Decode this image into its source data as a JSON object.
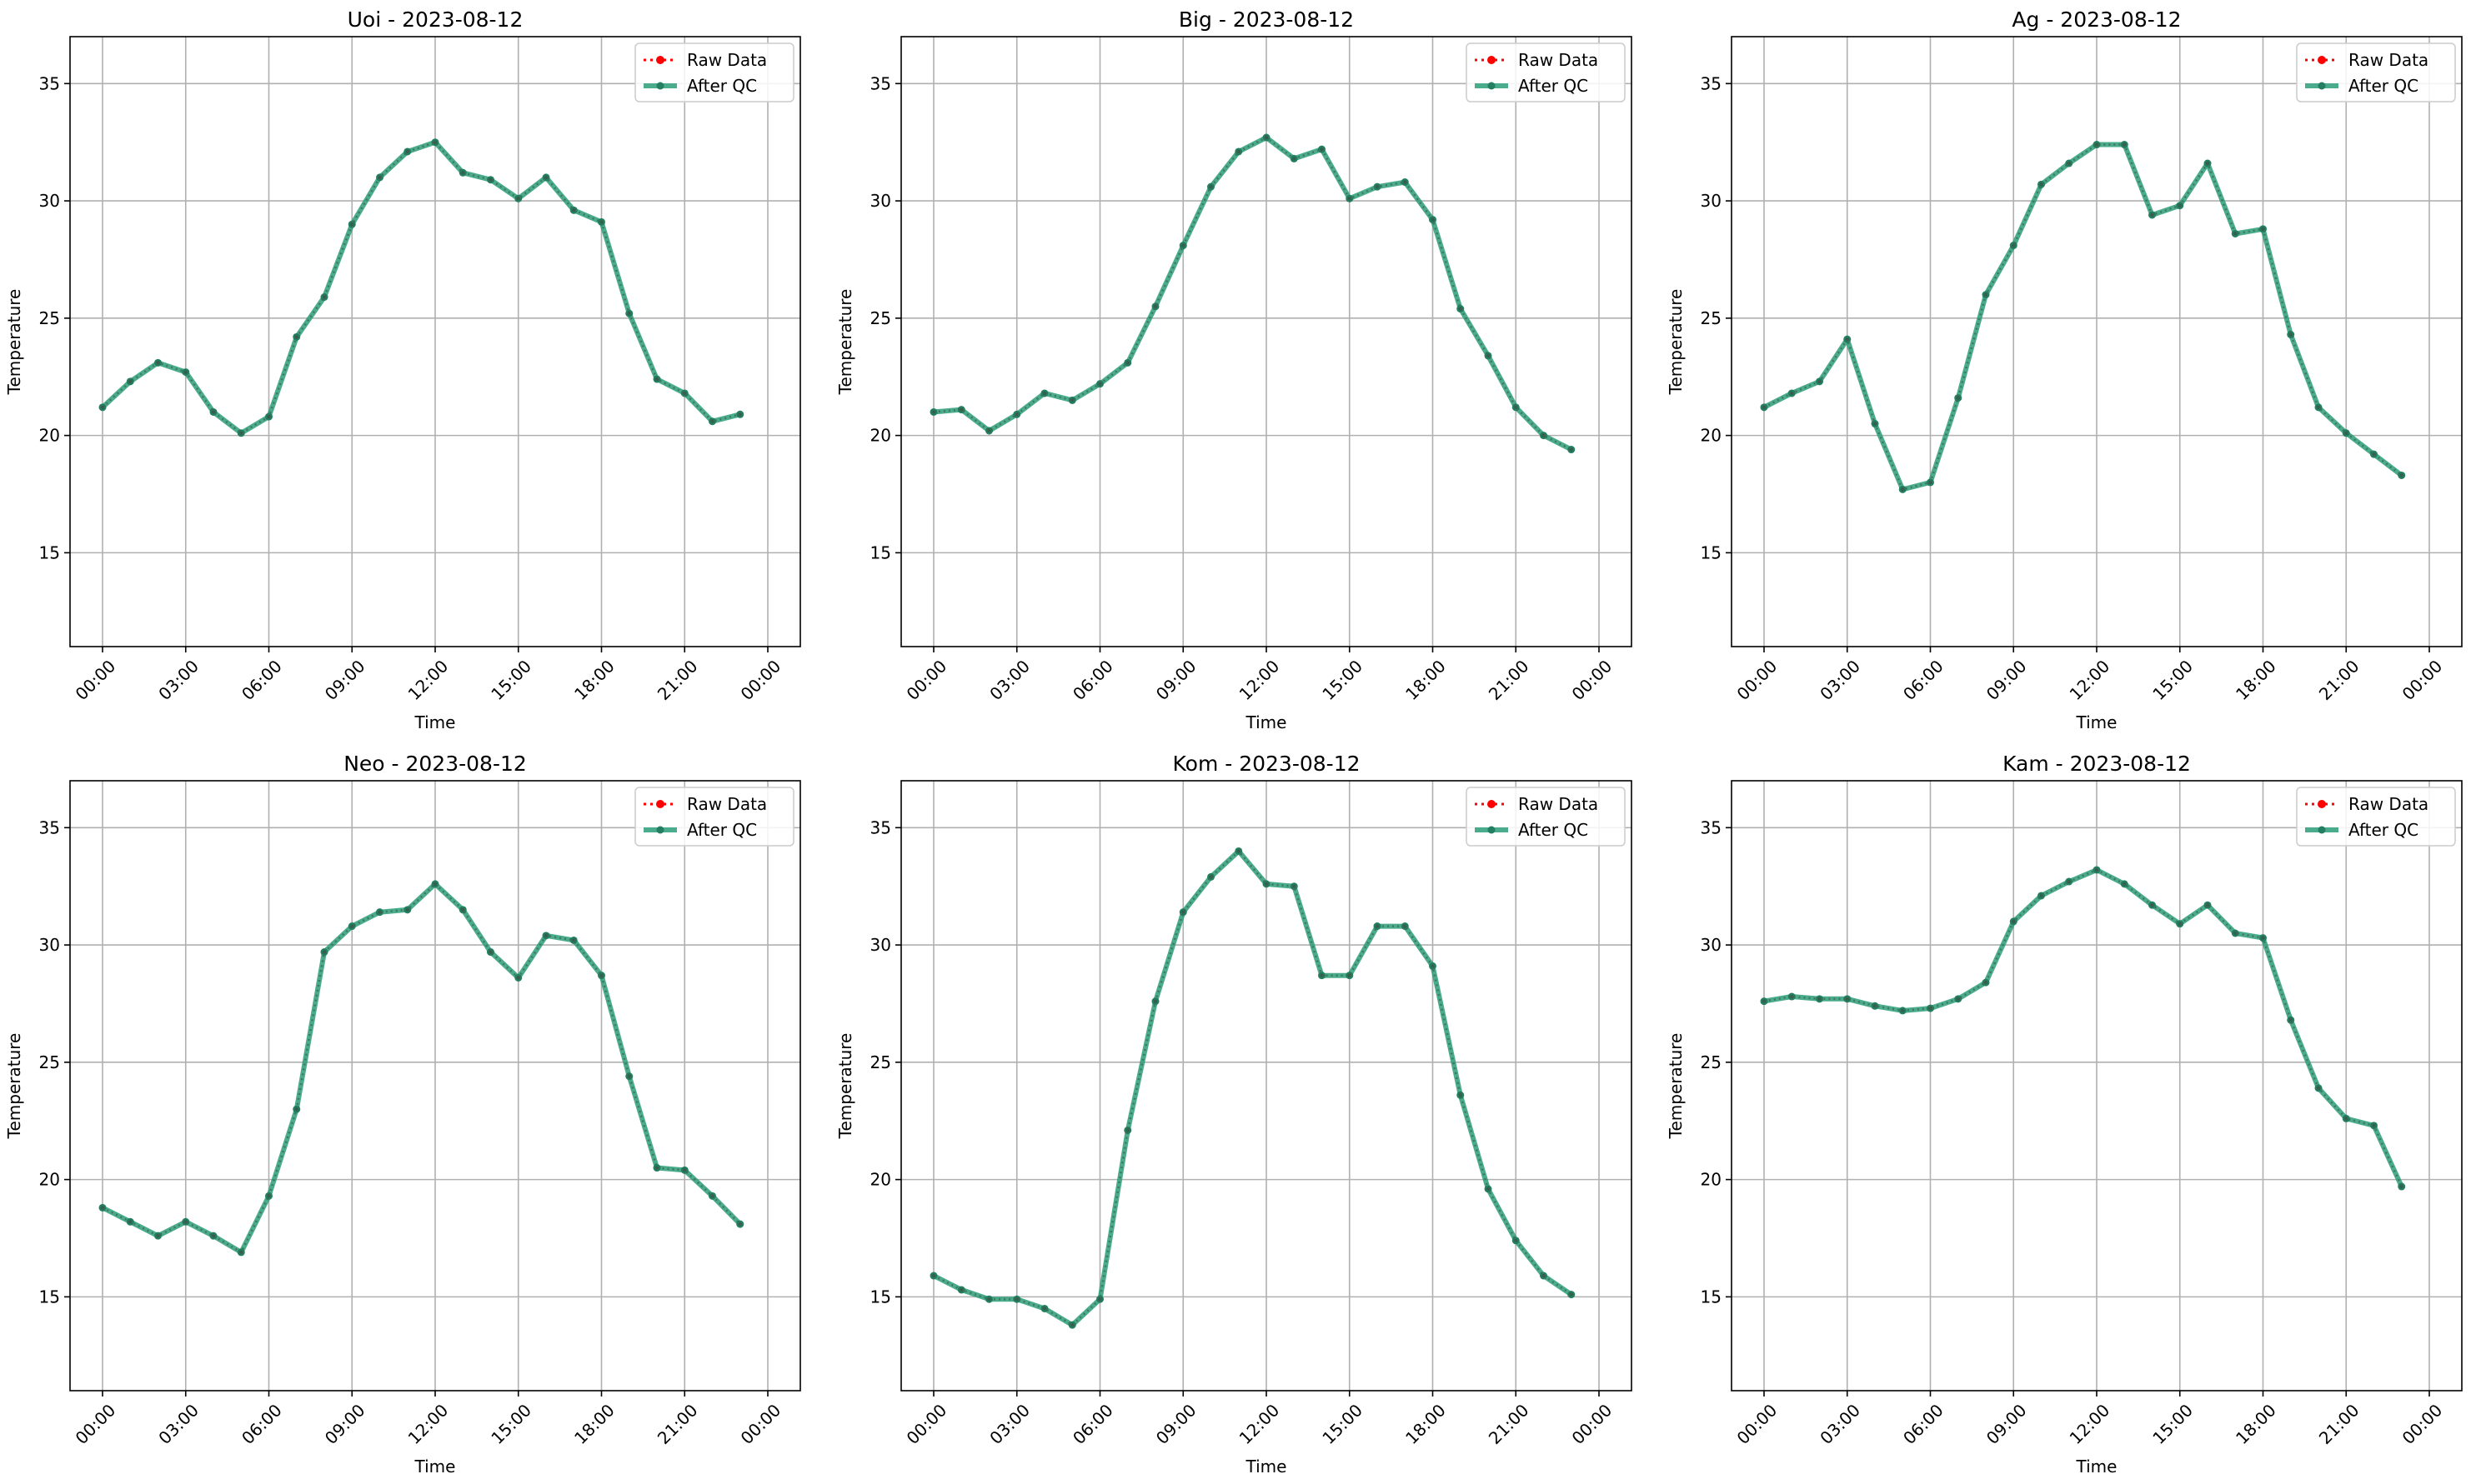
{
  "chart_data": [
    {
      "type": "line",
      "title": "Uoi - 2023-08-12",
      "xlabel": "Time",
      "ylabel": "Temperature",
      "x": [
        "00:00",
        "01:00",
        "02:00",
        "03:00",
        "04:00",
        "05:00",
        "06:00",
        "07:00",
        "08:00",
        "09:00",
        "10:00",
        "11:00",
        "12:00",
        "13:00",
        "14:00",
        "15:00",
        "16:00",
        "17:00",
        "18:00",
        "19:00",
        "20:00",
        "21:00",
        "22:00",
        "23:00"
      ],
      "xticks": [
        "00:00",
        "03:00",
        "06:00",
        "09:00",
        "12:00",
        "15:00",
        "18:00",
        "21:00",
        "00:00"
      ],
      "yticks": [
        "15",
        "20",
        "25",
        "30",
        "35"
      ],
      "ylim": [
        11,
        37
      ],
      "grid": true,
      "legend": "top-right",
      "series": [
        {
          "name": "Raw Data",
          "color": "#ff0000",
          "style": "dotted",
          "values": [
            21.2,
            22.3,
            23.1,
            22.7,
            21.0,
            20.1,
            20.8,
            24.2,
            25.9,
            29.0,
            31.0,
            32.1,
            32.5,
            31.2,
            30.9,
            30.1,
            31.0,
            29.6,
            29.1,
            25.2,
            22.4,
            21.8,
            20.6,
            20.9
          ]
        },
        {
          "name": "After QC",
          "color": "#2a9d78",
          "style": "solid",
          "values": [
            21.2,
            22.3,
            23.1,
            22.7,
            21.0,
            20.1,
            20.8,
            24.2,
            25.9,
            29.0,
            31.0,
            32.1,
            32.5,
            31.2,
            30.9,
            30.1,
            31.0,
            29.6,
            29.1,
            25.2,
            22.4,
            21.8,
            20.6,
            20.9
          ]
        }
      ]
    },
    {
      "type": "line",
      "title": "Big - 2023-08-12",
      "xlabel": "Time",
      "ylabel": "Temperature",
      "x": [
        "00:00",
        "01:00",
        "02:00",
        "03:00",
        "04:00",
        "05:00",
        "06:00",
        "07:00",
        "08:00",
        "09:00",
        "10:00",
        "11:00",
        "12:00",
        "13:00",
        "14:00",
        "15:00",
        "16:00",
        "17:00",
        "18:00",
        "19:00",
        "20:00",
        "21:00",
        "22:00",
        "23:00"
      ],
      "xticks": [
        "00:00",
        "03:00",
        "06:00",
        "09:00",
        "12:00",
        "15:00",
        "18:00",
        "21:00",
        "00:00"
      ],
      "yticks": [
        "15",
        "20",
        "25",
        "30",
        "35"
      ],
      "ylim": [
        11,
        37
      ],
      "grid": true,
      "legend": "top-right",
      "series": [
        {
          "name": "Raw Data",
          "color": "#ff0000",
          "style": "dotted",
          "values": [
            21.0,
            21.1,
            20.2,
            20.9,
            21.8,
            21.5,
            22.2,
            23.1,
            25.5,
            28.1,
            30.6,
            32.1,
            32.7,
            31.8,
            32.2,
            30.1,
            30.6,
            30.8,
            29.2,
            25.4,
            23.4,
            21.2,
            20.0,
            19.4
          ]
        },
        {
          "name": "After QC",
          "color": "#2a9d78",
          "style": "solid",
          "values": [
            21.0,
            21.1,
            20.2,
            20.9,
            21.8,
            21.5,
            22.2,
            23.1,
            25.5,
            28.1,
            30.6,
            32.1,
            32.7,
            31.8,
            32.2,
            30.1,
            30.6,
            30.8,
            29.2,
            25.4,
            23.4,
            21.2,
            20.0,
            19.4
          ]
        }
      ]
    },
    {
      "type": "line",
      "title": "Ag - 2023-08-12",
      "xlabel": "Time",
      "ylabel": "Temperature",
      "x": [
        "00:00",
        "01:00",
        "02:00",
        "03:00",
        "04:00",
        "05:00",
        "06:00",
        "07:00",
        "08:00",
        "09:00",
        "10:00",
        "11:00",
        "12:00",
        "13:00",
        "14:00",
        "15:00",
        "16:00",
        "17:00",
        "18:00",
        "19:00",
        "20:00",
        "21:00",
        "22:00",
        "23:00"
      ],
      "xticks": [
        "00:00",
        "03:00",
        "06:00",
        "09:00",
        "12:00",
        "15:00",
        "18:00",
        "21:00",
        "00:00"
      ],
      "yticks": [
        "15",
        "20",
        "25",
        "30",
        "35"
      ],
      "ylim": [
        11,
        37
      ],
      "grid": true,
      "legend": "top-right",
      "series": [
        {
          "name": "Raw Data",
          "color": "#ff0000",
          "style": "dotted",
          "values": [
            21.2,
            21.8,
            22.3,
            24.1,
            20.5,
            17.7,
            18.0,
            21.6,
            26.0,
            28.1,
            30.7,
            31.6,
            32.4,
            32.4,
            29.4,
            29.8,
            31.6,
            28.6,
            28.8,
            24.3,
            21.2,
            20.1,
            19.2,
            18.3
          ]
        },
        {
          "name": "After QC",
          "color": "#2a9d78",
          "style": "solid",
          "values": [
            21.2,
            21.8,
            22.3,
            24.1,
            20.5,
            17.7,
            18.0,
            21.6,
            26.0,
            28.1,
            30.7,
            31.6,
            32.4,
            32.4,
            29.4,
            29.8,
            31.6,
            28.6,
            28.8,
            24.3,
            21.2,
            20.1,
            19.2,
            18.3
          ]
        }
      ]
    },
    {
      "type": "line",
      "title": "Neo - 2023-08-12",
      "xlabel": "Time",
      "ylabel": "Temperature",
      "x": [
        "00:00",
        "01:00",
        "02:00",
        "03:00",
        "04:00",
        "05:00",
        "06:00",
        "07:00",
        "08:00",
        "09:00",
        "10:00",
        "11:00",
        "12:00",
        "13:00",
        "14:00",
        "15:00",
        "16:00",
        "17:00",
        "18:00",
        "19:00",
        "20:00",
        "21:00",
        "22:00",
        "23:00"
      ],
      "xticks": [
        "00:00",
        "03:00",
        "06:00",
        "09:00",
        "12:00",
        "15:00",
        "18:00",
        "21:00",
        "00:00"
      ],
      "yticks": [
        "15",
        "20",
        "25",
        "30",
        "35"
      ],
      "ylim": [
        11,
        37
      ],
      "grid": true,
      "legend": "top-right",
      "series": [
        {
          "name": "Raw Data",
          "color": "#ff0000",
          "style": "dotted",
          "values": [
            18.8,
            18.2,
            17.6,
            18.2,
            17.6,
            16.9,
            19.3,
            23.0,
            29.7,
            30.8,
            31.4,
            31.5,
            32.6,
            31.5,
            29.7,
            28.6,
            30.4,
            30.2,
            28.7,
            24.4,
            20.5,
            20.4,
            19.3,
            18.1
          ]
        },
        {
          "name": "After QC",
          "color": "#2a9d78",
          "style": "solid",
          "values": [
            18.8,
            18.2,
            17.6,
            18.2,
            17.6,
            16.9,
            19.3,
            23.0,
            29.7,
            30.8,
            31.4,
            31.5,
            32.6,
            31.5,
            29.7,
            28.6,
            30.4,
            30.2,
            28.7,
            24.4,
            20.5,
            20.4,
            19.3,
            18.1
          ]
        }
      ]
    },
    {
      "type": "line",
      "title": "Kom - 2023-08-12",
      "xlabel": "Time",
      "ylabel": "Temperature",
      "x": [
        "00:00",
        "01:00",
        "02:00",
        "03:00",
        "04:00",
        "05:00",
        "06:00",
        "07:00",
        "08:00",
        "09:00",
        "10:00",
        "11:00",
        "12:00",
        "13:00",
        "14:00",
        "15:00",
        "16:00",
        "17:00",
        "18:00",
        "19:00",
        "20:00",
        "21:00",
        "22:00",
        "23:00"
      ],
      "xticks": [
        "00:00",
        "03:00",
        "06:00",
        "09:00",
        "12:00",
        "15:00",
        "18:00",
        "21:00",
        "00:00"
      ],
      "yticks": [
        "15",
        "20",
        "25",
        "30",
        "35"
      ],
      "ylim": [
        11,
        37
      ],
      "grid": true,
      "legend": "top-right",
      "series": [
        {
          "name": "Raw Data",
          "color": "#ff0000",
          "style": "dotted",
          "values": [
            15.9,
            15.3,
            14.9,
            14.9,
            14.5,
            13.8,
            14.9,
            22.1,
            27.6,
            31.4,
            32.9,
            34.0,
            32.6,
            32.5,
            28.7,
            28.7,
            30.8,
            30.8,
            29.1,
            23.6,
            19.6,
            17.4,
            15.9,
            15.1
          ]
        },
        {
          "name": "After QC",
          "color": "#2a9d78",
          "style": "solid",
          "values": [
            15.9,
            15.3,
            14.9,
            14.9,
            14.5,
            13.8,
            14.9,
            22.1,
            27.6,
            31.4,
            32.9,
            34.0,
            32.6,
            32.5,
            28.7,
            28.7,
            30.8,
            30.8,
            29.1,
            23.6,
            19.6,
            17.4,
            15.9,
            15.1
          ]
        }
      ]
    },
    {
      "type": "line",
      "title": "Kam - 2023-08-12",
      "xlabel": "Time",
      "ylabel": "Temperature",
      "x": [
        "00:00",
        "01:00",
        "02:00",
        "03:00",
        "04:00",
        "05:00",
        "06:00",
        "07:00",
        "08:00",
        "09:00",
        "10:00",
        "11:00",
        "12:00",
        "13:00",
        "14:00",
        "15:00",
        "16:00",
        "17:00",
        "18:00",
        "19:00",
        "20:00",
        "21:00",
        "22:00",
        "23:00"
      ],
      "xticks": [
        "00:00",
        "03:00",
        "06:00",
        "09:00",
        "12:00",
        "15:00",
        "18:00",
        "21:00",
        "00:00"
      ],
      "yticks": [
        "15",
        "20",
        "25",
        "30",
        "35"
      ],
      "ylim": [
        11,
        37
      ],
      "grid": true,
      "legend": "top-right",
      "series": [
        {
          "name": "Raw Data",
          "color": "#ff0000",
          "style": "dotted",
          "values": [
            27.6,
            27.8,
            27.7,
            27.7,
            27.4,
            27.2,
            27.3,
            27.7,
            28.4,
            31.0,
            32.1,
            32.7,
            33.2,
            32.6,
            31.7,
            30.9,
            31.7,
            30.5,
            30.3,
            26.8,
            23.9,
            22.6,
            22.3,
            19.7
          ]
        },
        {
          "name": "After QC",
          "color": "#2a9d78",
          "style": "solid",
          "values": [
            27.6,
            27.8,
            27.7,
            27.7,
            27.4,
            27.2,
            27.3,
            27.7,
            28.4,
            31.0,
            32.1,
            32.7,
            33.2,
            32.6,
            31.7,
            30.9,
            31.7,
            30.5,
            30.3,
            26.8,
            23.9,
            22.6,
            22.3,
            19.7
          ]
        }
      ]
    }
  ]
}
